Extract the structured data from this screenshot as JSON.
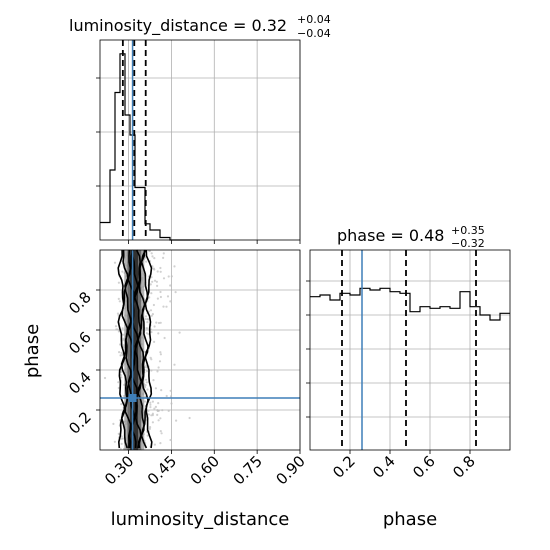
{
  "colors": {
    "truth": "#3f7fb8",
    "hist": "#000000",
    "grid": "#b0b0b0",
    "quantile": "#000000",
    "samples": "#bdbdbd"
  },
  "chart_data": [
    {
      "type": "histogram",
      "panel": "luminosity_distance-marginal",
      "title_param": "luminosity_distance",
      "title_value": "0.32",
      "title_plus": "+0.04",
      "title_minus": "−0.04",
      "xlim": [
        0.2,
        0.9
      ],
      "bin_edges": [
        0.2,
        0.2175,
        0.235,
        0.2525,
        0.27,
        0.2875,
        0.305,
        0.3225,
        0.34,
        0.3575,
        0.375,
        0.3925,
        0.41,
        0.4275,
        0.445,
        0.4625,
        0.48,
        0.4975,
        0.515,
        0.5325,
        0.55
      ],
      "counts": [
        0.14,
        0.14,
        0.56,
        1.18,
        1.49,
        1.0,
        0.84,
        0.42,
        0.42,
        0.13,
        0.08,
        0.08,
        0.02,
        0.02,
        0.0,
        0.0,
        0.0,
        0.0,
        0.0,
        0.0
      ],
      "ylim": [
        0,
        1.6
      ],
      "quantiles": [
        0.28,
        0.32,
        0.36
      ],
      "truth": 0.314
    },
    {
      "type": "scatter",
      "panel": "2d-joint",
      "xlabel": "luminosity_distance",
      "ylabel": "phase",
      "xlim": [
        0.2,
        0.9
      ],
      "ylim": [
        0.0,
        1.0
      ],
      "xticks": [
        "0.30",
        "0.45",
        "0.60",
        "0.75",
        "0.90"
      ],
      "xtick_values": [
        0.3,
        0.45,
        0.6,
        0.75,
        0.9
      ],
      "yticks": [
        "0.2",
        "0.4",
        "0.6",
        "0.8"
      ],
      "ytick_values": [
        0.2,
        0.4,
        0.6,
        0.8
      ],
      "contour_x": [
        0.275,
        0.287,
        0.298,
        0.31,
        0.322,
        0.333,
        0.345,
        0.357,
        0.37
      ],
      "truth": [
        0.314,
        0.26
      ]
    },
    {
      "type": "histogram",
      "panel": "phase-marginal",
      "title_param": "phase",
      "title_value": "0.48",
      "title_plus": "+0.35",
      "title_minus": "−0.32",
      "xlabel": "phase",
      "xlim": [
        0.0,
        1.0
      ],
      "xticks": [
        "0.2",
        "0.4",
        "0.6",
        "0.8"
      ],
      "xtick_values": [
        0.2,
        0.4,
        0.6,
        0.8
      ],
      "bin_edges": [
        0.0,
        0.05,
        0.1,
        0.15,
        0.2,
        0.25,
        0.3,
        0.35,
        0.4,
        0.45,
        0.5,
        0.55,
        0.6,
        0.65,
        0.7,
        0.75,
        0.8,
        0.85,
        0.9,
        0.95,
        1.0
      ],
      "counts": [
        0.92,
        0.93,
        0.9,
        0.94,
        0.93,
        0.97,
        0.96,
        0.97,
        0.95,
        0.94,
        0.83,
        0.86,
        0.85,
        0.86,
        0.85,
        0.95,
        0.86,
        0.81,
        0.78,
        0.82
      ],
      "ylim": [
        0,
        1.2
      ],
      "quantiles": [
        0.16,
        0.48,
        0.83
      ],
      "truth": 0.26
    }
  ]
}
